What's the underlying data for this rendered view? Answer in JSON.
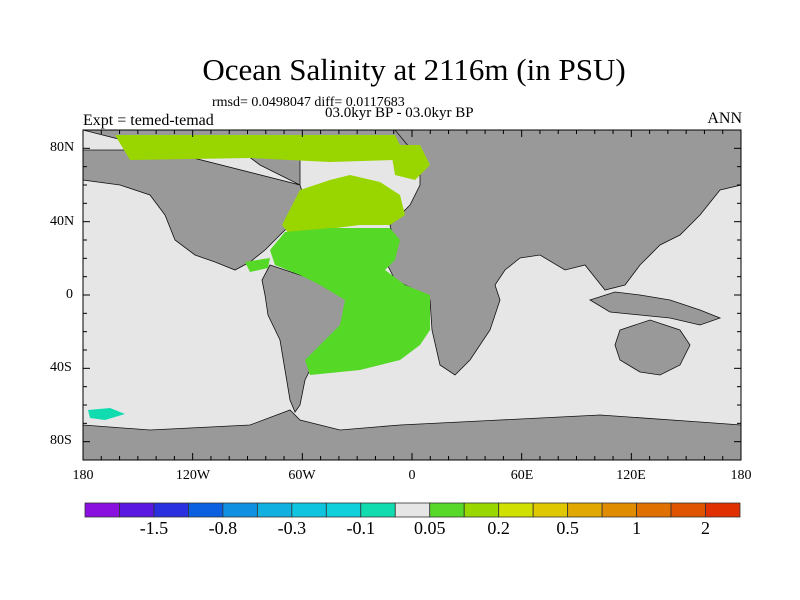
{
  "title": "Ocean Salinity at 2116m (in PSU)",
  "stats": "rmsd= 0.0498047 diff= 0.0117683",
  "period": "03.0kyr BP - 03.0kyr BP",
  "experiment": "Expt = temed-temad",
  "season": "ANN",
  "lat_ticks": [
    "80N",
    "40N",
    "0",
    "40S",
    "80S"
  ],
  "lon_ticks": [
    "180",
    "120W",
    "60W",
    "0",
    "60E",
    "120E",
    "180"
  ],
  "colorbar": {
    "labels": [
      "-1.5",
      "-0.8",
      "-0.3",
      "-0.1",
      "0.05",
      "0.2",
      "0.5",
      "1",
      "2"
    ],
    "colors": [
      "#8a10e0",
      "#5a18e0",
      "#2a30e0",
      "#0a60e0",
      "#1090e0",
      "#10b0e0",
      "#10c4e0",
      "#10d0dc",
      "#10dcb0",
      "#e6e6e6",
      "#58d828",
      "#98d800",
      "#d0e000",
      "#e0c800",
      "#e0a800",
      "#e08c00",
      "#e07000",
      "#e05400",
      "#e03000"
    ]
  },
  "colors": {
    "land": "#999999",
    "ocean": "#e6e6e6",
    "green_main": "#55d826",
    "green_light": "#99d600"
  }
}
